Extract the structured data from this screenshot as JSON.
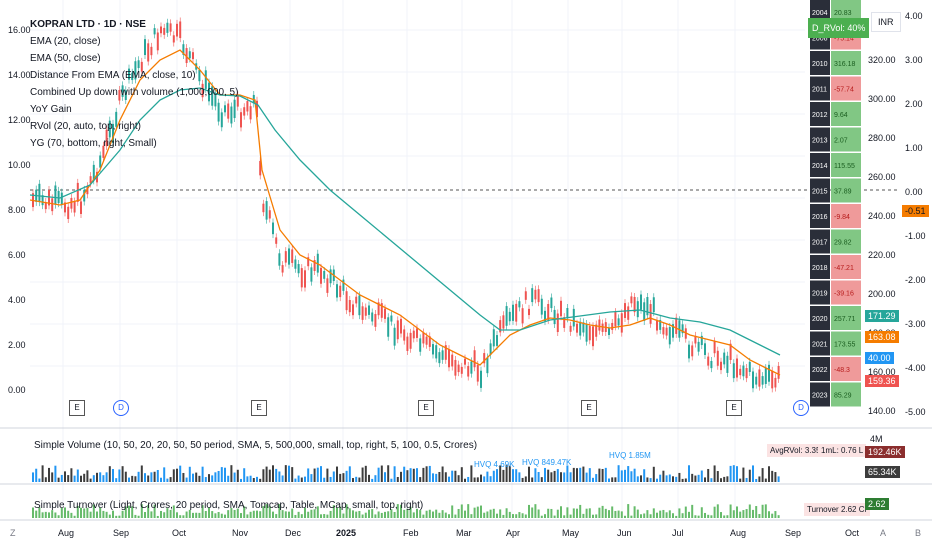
{
  "header": {
    "symbol_title": "KOPRAN LTD · 1D · NSE",
    "indicators": [
      "EMA (20, close)",
      "EMA (50, close)",
      "Distance From EMA (EMA, close, 10)",
      "Combined Up down with volume (1,000,000, 5)",
      "YoY Gain",
      "RVol (20, auto, top, right)",
      "YG (70, bottom, right, Small)"
    ]
  },
  "rvol_badge": "D_RVol: 40%",
  "currency": "INR",
  "price_axis": [
    "320.00",
    "300.00",
    "280.00",
    "260.00",
    "240.00",
    "220.00",
    "200.00",
    "180.00",
    "160.00",
    "140.00"
  ],
  "left_axis": [
    "16.00",
    "14.00",
    "12.00",
    "10.00",
    "8.00",
    "6.00",
    "4.00",
    "2.00",
    "0.00"
  ],
  "right_axis": [
    "4.00",
    "3.00",
    "2.00",
    "1.00",
    "0.00",
    "-1.00",
    "-2.00",
    "-3.00",
    "-4.00",
    "-5.00"
  ],
  "right_axis_tag": "-0.51",
  "price_tags": [
    {
      "value": "171.29",
      "color": "#26a69a"
    },
    {
      "value": "163.08",
      "color": "#f57c00"
    },
    {
      "value": "40.00",
      "color": "#2196f3"
    },
    {
      "value": "159.36",
      "color": "#ef5350"
    }
  ],
  "yoy_table": [
    {
      "year": "2004",
      "value": "20.83",
      "color": "#81c784"
    },
    {
      "year": "2008",
      "value": "-75.14",
      "color": "#ef9a9a"
    },
    {
      "year": "2010",
      "value": "316.18",
      "color": "#81c784"
    },
    {
      "year": "2011",
      "value": "-57.74",
      "color": "#ef9a9a"
    },
    {
      "year": "2012",
      "value": "9.64",
      "color": "#81c784"
    },
    {
      "year": "2013",
      "value": "2.07",
      "color": "#81c784"
    },
    {
      "year": "2014",
      "value": "115.55",
      "color": "#81c784"
    },
    {
      "year": "2015",
      "value": "37.89",
      "color": "#81c784"
    },
    {
      "year": "2016",
      "value": "-9.84",
      "color": "#ef9a9a"
    },
    {
      "year": "2017",
      "value": "29.82",
      "color": "#81c784"
    },
    {
      "year": "2018",
      "value": "-47.21",
      "color": "#ef9a9a"
    },
    {
      "year": "2019",
      "value": "-39.16",
      "color": "#ef9a9a"
    },
    {
      "year": "2020",
      "value": "257.71",
      "color": "#81c784"
    },
    {
      "year": "2021",
      "value": "173.55",
      "color": "#81c784"
    },
    {
      "year": "2022",
      "value": "-48.3",
      "color": "#ef9a9a"
    },
    {
      "year": "2023",
      "value": "85.29",
      "color": "#81c784"
    }
  ],
  "event_markers": [
    "E",
    "D",
    "E",
    "E",
    "E",
    "E",
    "D"
  ],
  "volume_pane": {
    "label": "Simple Volume (10, 50, 20, 20, 50, 50 period, SMA, 5, 500,000, small, top, right, 5, 100, 0.5, Crores)",
    "avg_rvol": "AvgRVol: 3.35 Cr",
    "ml": "1mL: 0.76 L",
    "hvq_labels": [
      "HVQ 4.69K",
      "HVQ 849.47K",
      "HVQ 1.85M"
    ],
    "axis_top": "4M",
    "tag1": "192.46K",
    "tag2": "65.34K"
  },
  "turnover_pane": {
    "label": "Simple Turnover (Light, Crores, 20 period, SMA, Tomcap, Table, MCap, small, top, right)",
    "turnover_box": "Turnover   2.62 Cr",
    "tag": "2.62"
  },
  "time_axis": [
    "Aug",
    "Sep",
    "Oct",
    "Nov",
    "Dec",
    "2025",
    "Feb",
    "Mar",
    "Apr",
    "May",
    "Jun",
    "Jul",
    "Aug",
    "Sep",
    "Oct"
  ],
  "bottom_controls": {
    "left": "Z",
    "mid1": "A",
    "mid2": "B"
  },
  "colors": {
    "up": "#26a69a",
    "down": "#ef5350",
    "ema20": "#f57c00",
    "ema50": "#26a69a",
    "volume_up": "#2196f3",
    "volume_down": "#26a69a"
  }
}
